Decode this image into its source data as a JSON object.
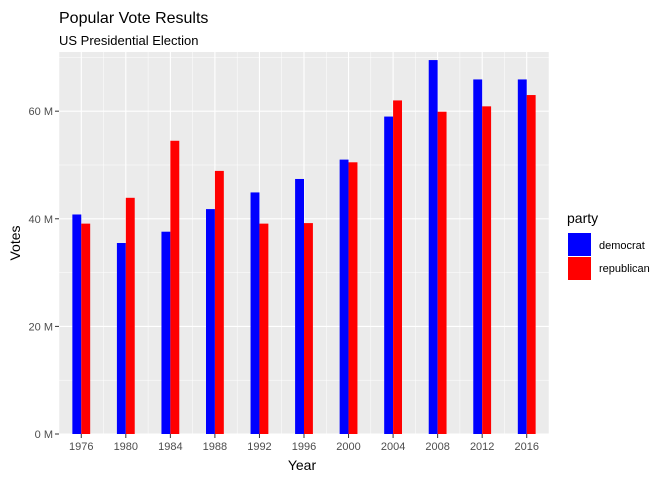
{
  "chart_data": {
    "type": "bar",
    "title": "Popular Vote Results",
    "subtitle": "US Presidential Election",
    "xlabel": "Year",
    "ylabel": "Votes",
    "categories": [
      "1976",
      "1980",
      "1984",
      "1988",
      "1992",
      "1996",
      "2000",
      "2004",
      "2008",
      "2012",
      "2016"
    ],
    "series": [
      {
        "name": "democrat",
        "color": "#0000FF",
        "values": [
          40.8,
          35.5,
          37.6,
          41.8,
          44.9,
          47.4,
          51.0,
          59.0,
          69.5,
          65.9,
          65.9
        ]
      },
      {
        "name": "republican",
        "color": "#FF0000",
        "values": [
          39.1,
          43.9,
          54.5,
          48.9,
          39.1,
          39.2,
          50.5,
          62.0,
          59.9,
          60.9,
          63.0
        ]
      }
    ],
    "ylim": [
      0,
      71
    ],
    "yticks": [
      0,
      20,
      40,
      60
    ],
    "ytick_labels": [
      "0 M",
      "20 M",
      "40 M",
      "60 M"
    ],
    "legend": {
      "title": "party",
      "position": "right"
    },
    "grid": true,
    "panel_background": "#EBEBEB"
  }
}
